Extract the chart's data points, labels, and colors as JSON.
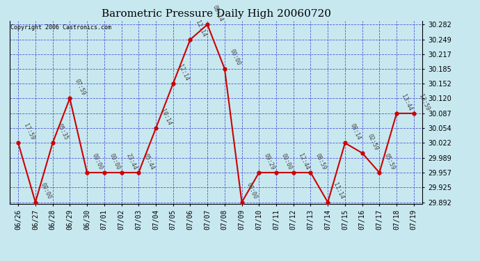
{
  "title": "Barometric Pressure Daily High 20060720",
  "copyright": "Copyright 2006 Castronics.com",
  "x_labels": [
    "06/26",
    "06/27",
    "06/28",
    "06/29",
    "06/30",
    "07/01",
    "07/02",
    "07/03",
    "07/04",
    "07/05",
    "07/06",
    "07/07",
    "07/08",
    "07/09",
    "07/10",
    "07/11",
    "07/12",
    "07/13",
    "07/14",
    "07/15",
    "07/16",
    "07/17",
    "07/18",
    "07/19"
  ],
  "y_values": [
    30.022,
    29.892,
    30.022,
    30.12,
    29.957,
    29.957,
    29.957,
    29.957,
    30.054,
    30.152,
    30.249,
    30.282,
    30.185,
    29.892,
    29.957,
    29.957,
    29.957,
    29.957,
    29.892,
    30.022,
    30.0,
    29.957,
    30.087,
    30.087
  ],
  "point_labels": [
    "17:59",
    "00:00",
    "05:35",
    "07:59",
    "00:00",
    "00:00",
    "23:44",
    "05:44",
    "10:14",
    "12:14",
    "12:14",
    "08:14",
    "00:00",
    "00:00",
    "09:29",
    "00:00",
    "12:44",
    "08:59",
    "11:14",
    "08:14",
    "02:59",
    "05:59",
    "13:44",
    "13:59"
  ],
  "y_min": 29.892,
  "y_max": 30.282,
  "y_ticks": [
    29.892,
    29.925,
    29.957,
    29.989,
    30.022,
    30.054,
    30.087,
    30.12,
    30.152,
    30.185,
    30.217,
    30.249,
    30.282
  ],
  "line_color": "#CC0000",
  "marker_color": "#CC0000",
  "bg_color": "#C8E8F0",
  "plot_bg": "#C8E8F0",
  "grid_color": "#3333CC",
  "title_color": "#000000",
  "copyright_color": "#000000",
  "tick_label_fontsize": 7,
  "title_fontsize": 11,
  "annot_fontsize": 6,
  "annot_color": "#444444"
}
